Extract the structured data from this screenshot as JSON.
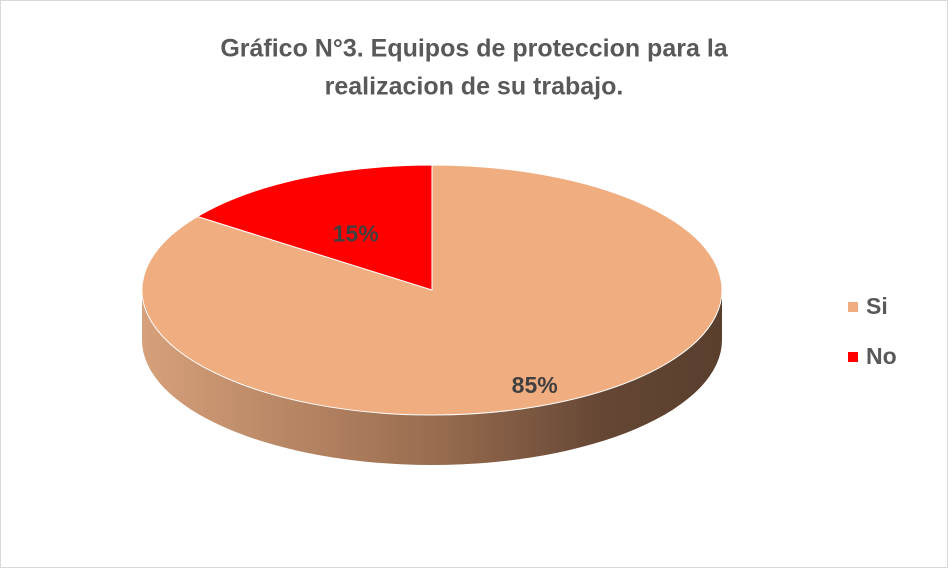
{
  "chart_data": {
    "type": "pie",
    "title": [
      "Gráfico N°3. Equipos de proteccion para la",
      "realizacion de su trabajo."
    ],
    "categories": [
      "Si",
      "No"
    ],
    "values": [
      85,
      15
    ],
    "value_labels": [
      "85%",
      "15%"
    ],
    "colors": [
      "#f0ad80",
      "#ff0000"
    ],
    "legend": "right"
  }
}
